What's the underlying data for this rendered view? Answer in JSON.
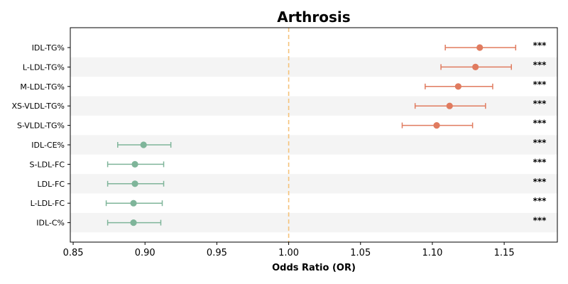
{
  "chart_data": {
    "type": "scatter",
    "subtype": "forest-plot",
    "title": "Arthrosis",
    "xlabel": "Odds Ratio (OR)",
    "ylabel": "",
    "xlim": [
      0.848,
      1.187
    ],
    "xticks": [
      "0.85",
      "0.90",
      "0.95",
      "1.00",
      "1.05",
      "1.10",
      "1.15"
    ],
    "xtick_values": [
      0.85,
      0.9,
      0.95,
      1.0,
      1.05,
      1.1,
      1.15
    ],
    "reference_line": 1.0,
    "grid": false,
    "row_banding": true,
    "colors": {
      "risk": "#e07b5f",
      "protective": "#7fb59a",
      "reference_line": "#f5c27a",
      "band": "#f4f4f4"
    },
    "rows": [
      {
        "label": "IDL-TG%",
        "or": 1.133,
        "lower": 1.109,
        "upper": 1.158,
        "significance": "***",
        "group": "risk"
      },
      {
        "label": "L-LDL-TG%",
        "or": 1.13,
        "lower": 1.106,
        "upper": 1.155,
        "significance": "***",
        "group": "risk"
      },
      {
        "label": "M-LDL-TG%",
        "or": 1.118,
        "lower": 1.095,
        "upper": 1.142,
        "significance": "***",
        "group": "risk"
      },
      {
        "label": "XS-VLDL-TG%",
        "or": 1.112,
        "lower": 1.088,
        "upper": 1.137,
        "significance": "***",
        "group": "risk"
      },
      {
        "label": "S-VLDL-TG%",
        "or": 1.103,
        "lower": 1.079,
        "upper": 1.128,
        "significance": "***",
        "group": "risk"
      },
      {
        "label": "IDL-CE%",
        "or": 0.899,
        "lower": 0.881,
        "upper": 0.918,
        "significance": "***",
        "group": "protective"
      },
      {
        "label": "S-LDL-FC",
        "or": 0.893,
        "lower": 0.874,
        "upper": 0.913,
        "significance": "***",
        "group": "protective"
      },
      {
        "label": "LDL-FC",
        "or": 0.893,
        "lower": 0.874,
        "upper": 0.913,
        "significance": "***",
        "group": "protective"
      },
      {
        "label": "L-LDL-FC",
        "or": 0.892,
        "lower": 0.873,
        "upper": 0.912,
        "significance": "***",
        "group": "protective"
      },
      {
        "label": "IDL-C%",
        "or": 0.892,
        "lower": 0.874,
        "upper": 0.911,
        "significance": "***",
        "group": "protective"
      }
    ]
  }
}
